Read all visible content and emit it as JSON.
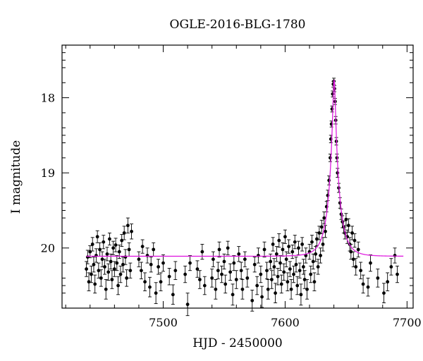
{
  "chart_data": {
    "type": "scatter",
    "title": "OGLE-2016-BLG-1780",
    "xlabel": "HJD - 2450000",
    "ylabel": "I magnitude",
    "xlim": [
      7417,
      7705
    ],
    "ylim": [
      20.8,
      17.3
    ],
    "y_inverted": true,
    "x_ticks": [
      {
        "value": 7500,
        "label": "7500"
      },
      {
        "value": 7600,
        "label": "7600"
      },
      {
        "value": 7700,
        "label": "7700"
      }
    ],
    "y_ticks": [
      {
        "value": 18,
        "label": "18"
      },
      {
        "value": 19,
        "label": "19"
      },
      {
        "value": 20,
        "label": "20"
      }
    ],
    "grid": false,
    "colors": {
      "data": "#000000",
      "model": "#e020e0",
      "axes": "#000000"
    },
    "series": [
      {
        "kind": "points_with_errorbars",
        "points": [
          [
            7437,
            20.28,
            0.1
          ],
          [
            7438,
            20.12,
            0.09
          ],
          [
            7439,
            20.45,
            0.12
          ],
          [
            7440,
            20.05,
            0.08
          ],
          [
            7441,
            20.35,
            0.11
          ],
          [
            7442,
            19.95,
            0.09
          ],
          [
            7443,
            20.22,
            0.1
          ],
          [
            7444,
            20.48,
            0.12
          ],
          [
            7445,
            20.1,
            0.09
          ],
          [
            7446,
            19.85,
            0.08
          ],
          [
            7447,
            20.3,
            0.1
          ],
          [
            7448,
            20.02,
            0.09
          ],
          [
            7449,
            20.4,
            0.11
          ],
          [
            7450,
            20.15,
            0.1
          ],
          [
            7451,
            19.92,
            0.09
          ],
          [
            7452,
            20.25,
            0.1
          ],
          [
            7453,
            20.55,
            0.13
          ],
          [
            7454,
            20.08,
            0.09
          ],
          [
            7455,
            20.32,
            0.11
          ],
          [
            7456,
            19.88,
            0.08
          ],
          [
            7457,
            20.18,
            0.1
          ],
          [
            7458,
            20.42,
            0.12
          ],
          [
            7459,
            20.0,
            0.09
          ],
          [
            7460,
            20.28,
            0.1
          ],
          [
            7461,
            19.96,
            0.09
          ],
          [
            7462,
            20.2,
            0.1
          ],
          [
            7463,
            20.5,
            0.12
          ],
          [
            7464,
            20.05,
            0.09
          ],
          [
            7465,
            20.35,
            0.11
          ],
          [
            7466,
            19.9,
            0.08
          ],
          [
            7467,
            20.22,
            0.1
          ],
          [
            7468,
            19.8,
            0.09
          ],
          [
            7469,
            20.12,
            0.1
          ],
          [
            7470,
            20.4,
            0.11
          ],
          [
            7471,
            19.7,
            0.1
          ],
          [
            7472,
            20.02,
            0.09
          ],
          [
            7473,
            20.3,
            0.1
          ],
          [
            7474,
            19.78,
            0.1
          ],
          [
            7480,
            20.15,
            0.1
          ],
          [
            7482,
            20.3,
            0.11
          ],
          [
            7483,
            19.98,
            0.09
          ],
          [
            7485,
            20.45,
            0.12
          ],
          [
            7487,
            20.1,
            0.1
          ],
          [
            7489,
            20.52,
            0.13
          ],
          [
            7490,
            20.22,
            0.1
          ],
          [
            7492,
            20.02,
            0.09
          ],
          [
            7494,
            20.6,
            0.14
          ],
          [
            7496,
            20.25,
            0.1
          ],
          [
            7498,
            20.45,
            0.12
          ],
          [
            7500,
            20.2,
            0.11
          ],
          [
            7505,
            20.38,
            0.11
          ],
          [
            7508,
            20.62,
            0.13
          ],
          [
            7510,
            20.3,
            0.12
          ],
          [
            7518,
            20.35,
            0.11
          ],
          [
            7520,
            20.75,
            0.15
          ],
          [
            7522,
            20.2,
            0.1
          ],
          [
            7528,
            20.28,
            0.11
          ],
          [
            7530,
            20.42,
            0.12
          ],
          [
            7532,
            20.05,
            0.1
          ],
          [
            7534,
            20.5,
            0.12
          ],
          [
            7540,
            20.4,
            0.12
          ],
          [
            7541,
            20.15,
            0.1
          ],
          [
            7543,
            20.55,
            0.13
          ],
          [
            7545,
            20.3,
            0.11
          ],
          [
            7546,
            20.02,
            0.1
          ],
          [
            7548,
            20.35,
            0.11
          ],
          [
            7550,
            20.18,
            0.1
          ],
          [
            7551,
            20.48,
            0.12
          ],
          [
            7553,
            20.0,
            0.09
          ],
          [
            7555,
            20.32,
            0.11
          ],
          [
            7557,
            20.62,
            0.14
          ],
          [
            7558,
            20.2,
            0.1
          ],
          [
            7560,
            20.42,
            0.12
          ],
          [
            7562,
            20.08,
            0.1
          ],
          [
            7564,
            20.3,
            0.11
          ],
          [
            7565,
            20.55,
            0.13
          ],
          [
            7567,
            20.15,
            0.1
          ],
          [
            7569,
            20.4,
            0.12
          ],
          [
            7573,
            20.7,
            0.14
          ],
          [
            7575,
            20.22,
            0.1
          ],
          [
            7577,
            20.5,
            0.12
          ],
          [
            7578,
            20.1,
            0.1
          ],
          [
            7580,
            20.35,
            0.11
          ],
          [
            7581,
            20.65,
            0.14
          ],
          [
            7583,
            20.02,
            0.1
          ],
          [
            7585,
            20.3,
            0.11
          ],
          [
            7586,
            20.55,
            0.13
          ],
          [
            7588,
            20.18,
            0.1
          ],
          [
            7589,
            20.42,
            0.12
          ],
          [
            7590,
            19.95,
            0.09
          ],
          [
            7591,
            20.25,
            0.11
          ],
          [
            7592,
            20.6,
            0.13
          ],
          [
            7593,
            20.08,
            0.1
          ],
          [
            7594,
            20.38,
            0.11
          ],
          [
            7595,
            19.9,
            0.09
          ],
          [
            7596,
            20.2,
            0.1
          ],
          [
            7597,
            20.48,
            0.12
          ],
          [
            7598,
            20.02,
            0.09
          ],
          [
            7599,
            20.32,
            0.11
          ],
          [
            7600,
            19.85,
            0.09
          ],
          [
            7601,
            20.15,
            0.1
          ],
          [
            7602,
            20.45,
            0.12
          ],
          [
            7603,
            19.98,
            0.09
          ],
          [
            7604,
            20.28,
            0.1
          ],
          [
            7605,
            20.55,
            0.13
          ],
          [
            7606,
            20.05,
            0.09
          ],
          [
            7607,
            20.35,
            0.11
          ],
          [
            7608,
            19.92,
            0.09
          ],
          [
            7609,
            20.22,
            0.1
          ],
          [
            7610,
            20.5,
            0.12
          ],
          [
            7611,
            20.0,
            0.09
          ],
          [
            7612,
            20.3,
            0.1
          ],
          [
            7613,
            20.62,
            0.14
          ],
          [
            7614,
            19.95,
            0.09
          ],
          [
            7615,
            20.25,
            0.1
          ],
          [
            7616,
            20.42,
            0.12
          ],
          [
            7617,
            20.1,
            0.1
          ],
          [
            7618,
            20.55,
            0.13
          ],
          [
            7620,
            20.05,
            0.1
          ],
          [
            7621,
            20.35,
            0.11
          ],
          [
            7622,
            19.92,
            0.09
          ],
          [
            7623,
            20.18,
            0.1
          ],
          [
            7624,
            20.45,
            0.12
          ],
          [
            7625,
            20.08,
            0.1
          ],
          [
            7626,
            19.88,
            0.09
          ],
          [
            7627,
            20.25,
            0.1
          ],
          [
            7628,
            19.8,
            0.09
          ],
          [
            7629,
            20.1,
            0.1
          ],
          [
            7630,
            19.72,
            0.09
          ],
          [
            7631,
            19.95,
            0.09
          ],
          [
            7632,
            19.6,
            0.08
          ],
          [
            7633,
            19.78,
            0.08
          ],
          [
            7634,
            19.45,
            0.07
          ],
          [
            7635,
            19.3,
            0.07
          ],
          [
            7636,
            19.1,
            0.06
          ],
          [
            7637,
            18.8,
            0.05
          ],
          [
            7637.5,
            18.55,
            0.05
          ],
          [
            7638,
            18.35,
            0.04
          ],
          [
            7638.5,
            18.15,
            0.04
          ],
          [
            7639,
            17.95,
            0.04
          ],
          [
            7639.5,
            17.82,
            0.04
          ],
          [
            7640,
            17.78,
            0.04
          ],
          [
            7640.5,
            17.88,
            0.04
          ],
          [
            7641,
            18.05,
            0.04
          ],
          [
            7641.5,
            18.3,
            0.05
          ],
          [
            7642,
            18.58,
            0.05
          ],
          [
            7642.5,
            18.8,
            0.05
          ],
          [
            7643,
            19.0,
            0.06
          ],
          [
            7644,
            19.2,
            0.06
          ],
          [
            7645,
            19.4,
            0.07
          ],
          [
            7646,
            19.55,
            0.07
          ],
          [
            7647,
            19.65,
            0.08
          ],
          [
            7648,
            19.72,
            0.08
          ],
          [
            7649,
            19.8,
            0.08
          ],
          [
            7650,
            19.62,
            0.08
          ],
          [
            7651,
            19.85,
            0.09
          ],
          [
            7652,
            19.7,
            0.09
          ],
          [
            7653,
            19.95,
            0.09
          ],
          [
            7654,
            20.05,
            0.1
          ],
          [
            7655,
            19.8,
            0.09
          ],
          [
            7656,
            20.15,
            0.1
          ],
          [
            7657,
            19.9,
            0.09
          ],
          [
            7658,
            20.25,
            0.11
          ],
          [
            7660,
            20.02,
            0.1
          ],
          [
            7662,
            20.3,
            0.11
          ],
          [
            7664,
            20.48,
            0.12
          ],
          [
            7668,
            20.52,
            0.12
          ],
          [
            7670,
            20.2,
            0.11
          ],
          [
            7676,
            20.4,
            0.12
          ],
          [
            7681,
            20.6,
            0.13
          ],
          [
            7684,
            20.45,
            0.12
          ],
          [
            7687,
            20.25,
            0.11
          ],
          [
            7690,
            20.1,
            0.1
          ],
          [
            7692,
            20.35,
            0.11
          ]
        ]
      },
      {
        "kind": "model_curve",
        "baseline": 20.11,
        "peak_mag": 17.76,
        "t0": 7640.2,
        "x_range": [
          7437,
          7697
        ]
      }
    ]
  }
}
